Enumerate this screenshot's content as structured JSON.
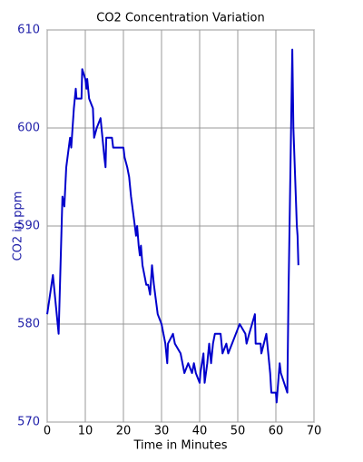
{
  "chart_data": {
    "type": "line",
    "title": "CO2 Concentration Variation",
    "xlabel": "Time in Minutes",
    "ylabel": "CO2 in ppm",
    "x": [
      0,
      1.5,
      3,
      4,
      4.5,
      5,
      6,
      6.3,
      7,
      7.5,
      7.7,
      9,
      9.2,
      10,
      10.3,
      10.5,
      11,
      12,
      12.3,
      13,
      14,
      15,
      15.3,
      15.5,
      17,
      17.3,
      20,
      20.3,
      21,
      21.5,
      22,
      23,
      23.3,
      23.6,
      24,
      24.3,
      24.6,
      25,
      26,
      26.5,
      27,
      27.5,
      28,
      29,
      30,
      31,
      31.5,
      31.7,
      33,
      33.5,
      35,
      36,
      37,
      38,
      38.5,
      39,
      40,
      40.2,
      41,
      41.3,
      42,
      42.5,
      43,
      43.5,
      44,
      45.5,
      46,
      47,
      47.5,
      48.5,
      49.5,
      50.5,
      52,
      52.3,
      53,
      54.5,
      54.7,
      56,
      56.2,
      57.5,
      58.5,
      58.8,
      60,
      60.2,
      61,
      61.3,
      63,
      63.3,
      64.3,
      64.6,
      65.5,
      65.7,
      65.9
    ],
    "series": [
      {
        "name": "CO2",
        "color": "#0000cc",
        "values": [
          581,
          585,
          579,
          593,
          592,
          596,
          599,
          598,
          602,
          604,
          603,
          603,
          606,
          605,
          604,
          605,
          603,
          602,
          599,
          600,
          601,
          597,
          596,
          599,
          599,
          598,
          598,
          597,
          596,
          595,
          593,
          590,
          589,
          590,
          588,
          587,
          588,
          586,
          584,
          584,
          583,
          586,
          584,
          581,
          580,
          578,
          576,
          578,
          579,
          578,
          577,
          575,
          576,
          575,
          576,
          575,
          574,
          575,
          577,
          574,
          576,
          578,
          576,
          578,
          579,
          579,
          577,
          578,
          577,
          578,
          579,
          580,
          579,
          578,
          579,
          581,
          578,
          578,
          577,
          579,
          575,
          573,
          573,
          572,
          576,
          575,
          573,
          583,
          608,
          600,
          590,
          589,
          586
        ]
      }
    ],
    "xlim": [
      0,
      70
    ],
    "xticks": [
      0,
      10,
      20,
      30,
      40,
      50,
      60,
      70
    ],
    "ylim": [
      570,
      610
    ],
    "yticks": [
      570,
      580,
      590,
      600,
      610
    ],
    "grid": true
  }
}
